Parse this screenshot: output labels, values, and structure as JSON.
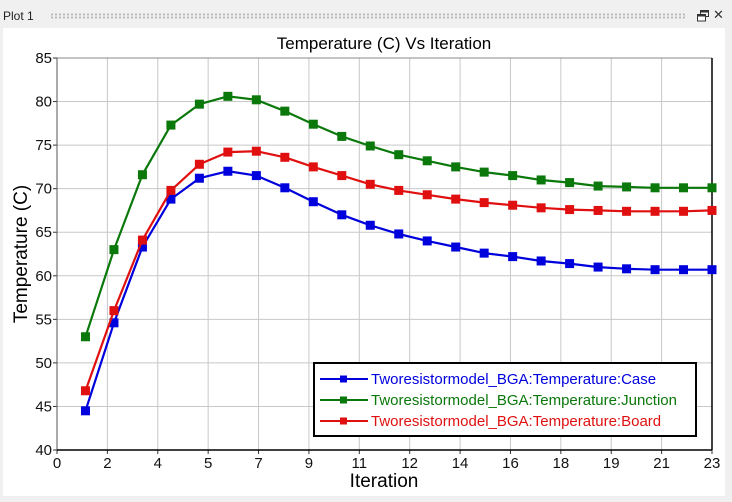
{
  "panel": {
    "title": "Plot 1",
    "restore_icon": "restore-window-icon",
    "close_icon": "close-icon",
    "close_glyph": "✕"
  },
  "chart_data": {
    "type": "line",
    "title": "Temperature (C) Vs Iteration",
    "xlabel": "Iteration",
    "ylabel": "Temperature (C)",
    "xlim": [
      0,
      23
    ],
    "ylim": [
      40,
      85
    ],
    "xticks": [
      "0",
      "2",
      "4",
      "5",
      "7",
      "9",
      "11",
      "12",
      "14",
      "16",
      "18",
      "19",
      "21",
      "23"
    ],
    "yticks": [
      "40",
      "45",
      "50",
      "55",
      "60",
      "65",
      "70",
      "75",
      "80",
      "85"
    ],
    "grid": true,
    "legend_position": "bottom-right",
    "x": [
      1,
      2,
      3,
      4,
      5,
      6,
      7,
      8,
      9,
      10,
      11,
      12,
      13,
      14,
      15,
      16,
      17,
      18,
      19,
      20,
      21,
      22,
      23
    ],
    "series": [
      {
        "name": "Tworesistormodel_BGA:Temperature:Case",
        "color": "#0000dd",
        "values": [
          44.5,
          54.6,
          63.3,
          68.8,
          71.2,
          72.0,
          71.5,
          70.1,
          68.5,
          67.0,
          65.8,
          64.8,
          64.0,
          63.3,
          62.6,
          62.2,
          61.7,
          61.4,
          61.0,
          60.8,
          60.7,
          60.7,
          60.7
        ]
      },
      {
        "name": "Tworesistormodel_BGA:Temperature:Junction",
        "color": "#0a780a",
        "values": [
          53.0,
          63.0,
          71.6,
          77.3,
          79.7,
          80.6,
          80.2,
          78.9,
          77.4,
          76.0,
          74.9,
          73.9,
          73.2,
          72.5,
          71.9,
          71.5,
          71.0,
          70.7,
          70.3,
          70.2,
          70.1,
          70.1,
          70.1
        ]
      },
      {
        "name": "Tworesistormodel_BGA:Temperature:Board",
        "color": "#e01010",
        "values": [
          46.8,
          56.0,
          64.1,
          69.8,
          72.8,
          74.2,
          74.3,
          73.6,
          72.5,
          71.5,
          70.5,
          69.8,
          69.3,
          68.8,
          68.4,
          68.1,
          67.8,
          67.6,
          67.5,
          67.4,
          67.4,
          67.4,
          67.5
        ]
      }
    ]
  }
}
